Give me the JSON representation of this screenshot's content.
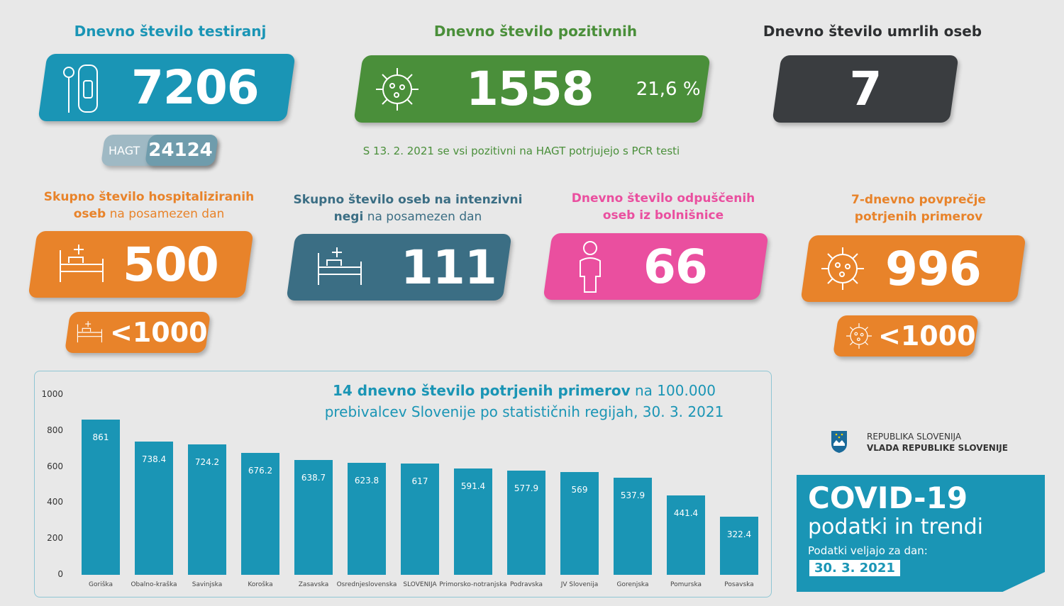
{
  "colors": {
    "blue": "#1a95b5",
    "green": "#4a8f3a",
    "dark": "#3a3d40",
    "orange": "#e8832a",
    "teal": "#3b6e84",
    "pink": "#ea4f9f"
  },
  "tests": {
    "title": "Dnevno število testiranj",
    "value": "7206",
    "hagt_label": "HAGT",
    "hagt_value": "24124",
    "icon": "test-kit-icon"
  },
  "positive": {
    "title": "Dnevno število pozitivnih",
    "value": "1558",
    "percent": "21,6 %",
    "note": "S 13. 2. 2021 se vsi pozitivni na HAGT potrjujejo s PCR testi",
    "icon": "virus-icon"
  },
  "deaths": {
    "title": "Dnevno število umrlih oseb",
    "value": "7"
  },
  "hospital": {
    "title_bold": "Skupno število hospitaliziranih",
    "title_bold2": "oseb",
    "title_rest": " na posamezen dan",
    "value": "500",
    "threshold": "<1000",
    "icon": "hospital-bed-icon"
  },
  "icu": {
    "title_bold": "Skupno število oseb na intenzivni",
    "title_bold2": "negi",
    "title_rest": " na posamezen dan",
    "value": "111",
    "icon": "hospital-bed-icon"
  },
  "discharged": {
    "title1": "Dnevno število odpuščenih",
    "title2": "oseb iz bolnišnice",
    "value": "66",
    "icon": "person-icon"
  },
  "avg7": {
    "title1": "7-dnevno povprečje",
    "title2": "potrjenih primerov",
    "value": "996",
    "threshold": "<1000",
    "icon": "virus-icon"
  },
  "gov": {
    "line1": "REPUBLIKA SLOVENIJA",
    "line2": "VLADA REPUBLIKE SLOVENIJE"
  },
  "badge": {
    "title": "COVID-19",
    "subtitle": "podatki in trendi",
    "valid_label": "Podatki veljajo za dan:",
    "date": "30. 3. 2021"
  },
  "chart_data": {
    "type": "bar",
    "title_bold": "14 dnevno število potrjenih primerov",
    "title_rest": " na 100.000",
    "title_line2": "prebivalcev Slovenije po statističnih regijah, 30. 3. 2021",
    "categories": [
      "Goriška",
      "Obalno-kraška",
      "Savinjska",
      "Koroška",
      "Zasavska",
      "Osrednjeslovenska",
      "SLOVENIJA",
      "Primorsko-notranjska",
      "Podravska",
      "JV Slovenija",
      "Gorenjska",
      "Pomurska",
      "Posavska"
    ],
    "values": [
      861,
      738.4,
      724.2,
      676.2,
      638.7,
      623.8,
      617,
      591.4,
      577.9,
      569,
      537.9,
      441.4,
      322.4
    ],
    "value_labels": [
      "861",
      "738.4",
      "724.2",
      "676.2",
      "638.7",
      "623.8",
      "617",
      "591.4",
      "577.9",
      "569",
      "537.9",
      "441.4",
      "322.4"
    ],
    "yticks": [
      "0",
      "200",
      "400",
      "600",
      "800",
      "1000"
    ],
    "ylim": [
      0,
      1000
    ],
    "grid": false
  }
}
